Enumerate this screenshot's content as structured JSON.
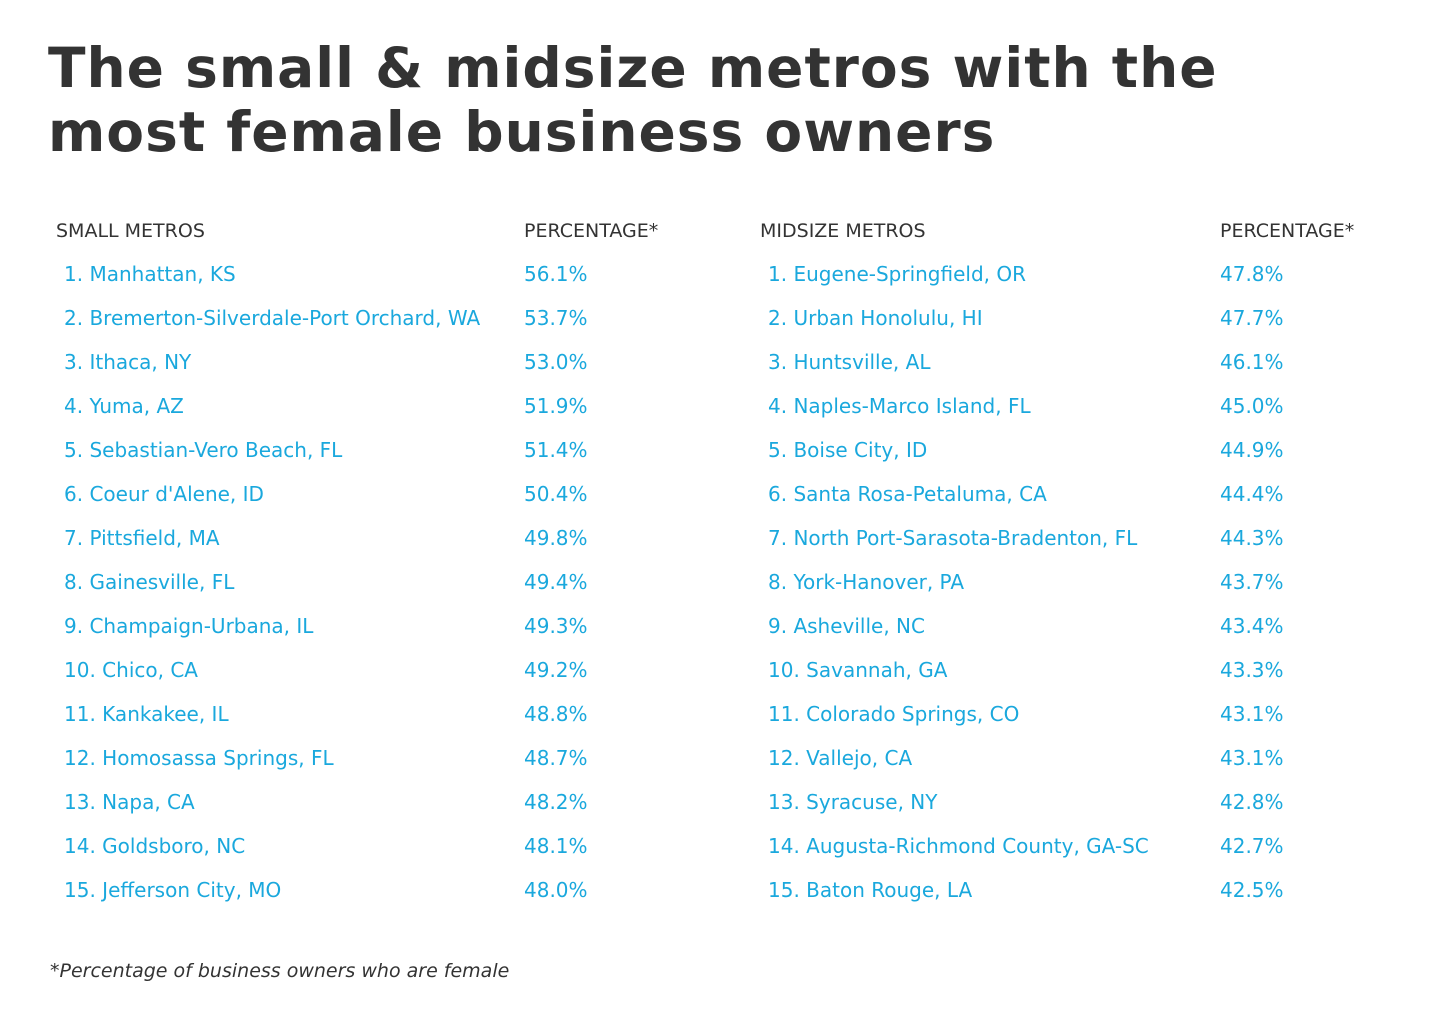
{
  "title": "The small & midsize metros with the most female business owners",
  "footnote": "*Percentage of business owners who are female",
  "colors": {
    "title": "#333333",
    "header": "#333333",
    "row_text": "#1aa8dd"
  },
  "chart_data": [
    {
      "type": "table",
      "columns": [
        "SMALL METROS",
        "PERCENTAGE*"
      ],
      "rows": [
        {
          "rank": "1.",
          "metro": "Manhattan, KS",
          "pct": "56.1%"
        },
        {
          "rank": "2.",
          "metro": "Bremerton-Silverdale-Port Orchard, WA",
          "pct": "53.7%"
        },
        {
          "rank": "3.",
          "metro": "Ithaca, NY",
          "pct": "53.0%"
        },
        {
          "rank": "4.",
          "metro": "Yuma, AZ",
          "pct": "51.9%"
        },
        {
          "rank": "5.",
          "metro": "Sebastian-Vero Beach, FL",
          "pct": "51.4%"
        },
        {
          "rank": "6.",
          "metro": "Coeur d'Alene, ID",
          "pct": "50.4%"
        },
        {
          "rank": "7.",
          "metro": "Pittsfield, MA",
          "pct": "49.8%"
        },
        {
          "rank": "8.",
          "metro": "Gainesville, FL",
          "pct": "49.4%"
        },
        {
          "rank": "9.",
          "metro": "Champaign-Urbana, IL",
          "pct": "49.3%"
        },
        {
          "rank": "10.",
          "metro": "Chico, CA",
          "pct": "49.2%"
        },
        {
          "rank": "11.",
          "metro": "Kankakee, IL",
          "pct": "48.8%"
        },
        {
          "rank": "12.",
          "metro": "Homosassa Springs, FL",
          "pct": "48.7%"
        },
        {
          "rank": "13.",
          "metro": "Napa, CA",
          "pct": "48.2%"
        },
        {
          "rank": "14.",
          "metro": "Goldsboro, NC",
          "pct": "48.1%"
        },
        {
          "rank": "15.",
          "metro": "Jefferson City, MO",
          "pct": "48.0%"
        }
      ]
    },
    {
      "type": "table",
      "columns": [
        "MIDSIZE METROS",
        "PERCENTAGE*"
      ],
      "rows": [
        {
          "rank": "1.",
          "metro": "Eugene-Springfield, OR",
          "pct": "47.8%"
        },
        {
          "rank": "2.",
          "metro": "Urban Honolulu, HI",
          "pct": "47.7%"
        },
        {
          "rank": "3.",
          "metro": "Huntsville, AL",
          "pct": "46.1%"
        },
        {
          "rank": "4.",
          "metro": "Naples-Marco Island, FL",
          "pct": "45.0%"
        },
        {
          "rank": "5.",
          "metro": "Boise City, ID",
          "pct": "44.9%"
        },
        {
          "rank": "6.",
          "metro": "Santa Rosa-Petaluma, CA",
          "pct": "44.4%"
        },
        {
          "rank": "7.",
          "metro": "North Port-Sarasota-Bradenton, FL",
          "pct": "44.3%"
        },
        {
          "rank": "8.",
          "metro": "York-Hanover, PA",
          "pct": "43.7%"
        },
        {
          "rank": "9.",
          "metro": "Asheville, NC",
          "pct": "43.4%"
        },
        {
          "rank": "10.",
          "metro": "Savannah, GA",
          "pct": "43.3%"
        },
        {
          "rank": "11.",
          "metro": "Colorado Springs, CO",
          "pct": "43.1%"
        },
        {
          "rank": "12.",
          "metro": "Vallejo, CA",
          "pct": "43.1%"
        },
        {
          "rank": "13.",
          "metro": "Syracuse, NY",
          "pct": "42.8%"
        },
        {
          "rank": "14.",
          "metro": "Augusta-Richmond County, GA-SC",
          "pct": "42.7%"
        },
        {
          "rank": "15.",
          "metro": "Baton Rouge, LA",
          "pct": "42.5%"
        }
      ]
    }
  ]
}
